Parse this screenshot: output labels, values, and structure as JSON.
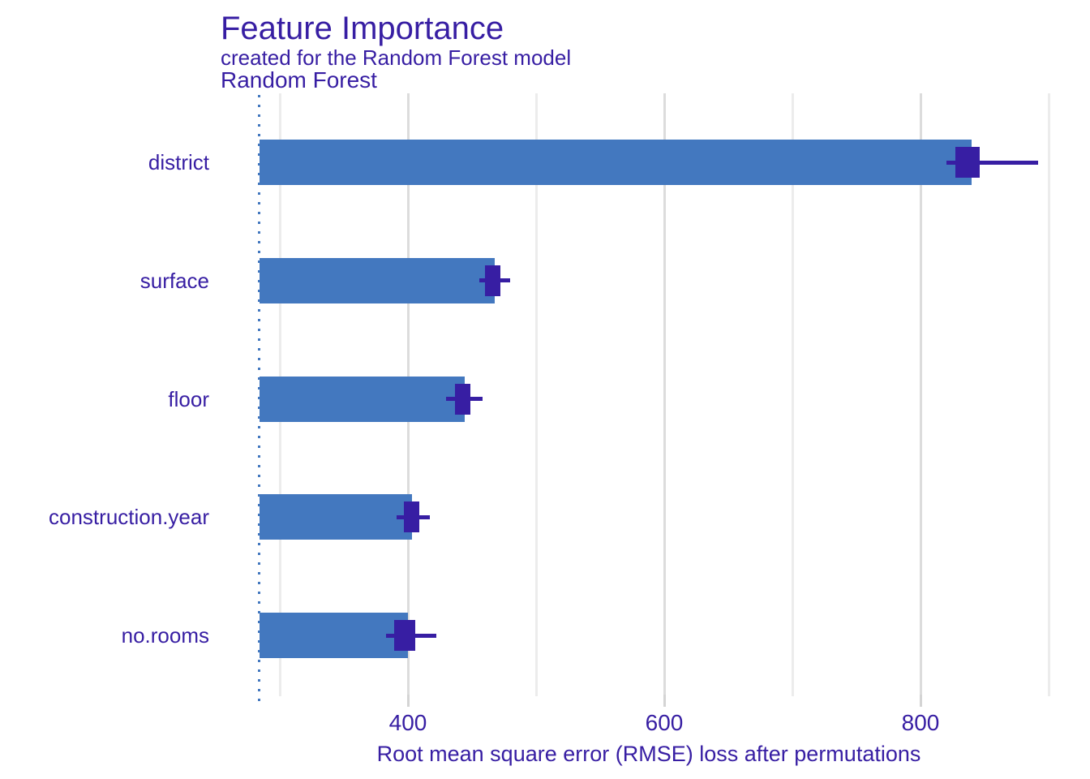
{
  "header": {
    "title": "Feature Importance",
    "subtitle": "created for the Random Forest model",
    "facet_label": "Random Forest"
  },
  "axis": {
    "x_title": "Root mean square error (RMSE) loss after permutations",
    "x_tick_labels": [
      "400",
      "600",
      "800"
    ]
  },
  "colors": {
    "bar_fill": "#4378bf",
    "boxplot_fill": "#371ea3",
    "text": "#371ea3",
    "gridline_major": "#dcdcdc",
    "gridline_minor": "#ececec",
    "tick_mark": "#d4d4d4",
    "baseline_dotted": "#4378bf",
    "background": "#ffffff"
  },
  "chart_data": {
    "type": "bar",
    "orientation": "horizontal",
    "title": "Feature Importance",
    "subtitle": "created for the Random Forest model",
    "facet": "Random Forest",
    "xlabel": "Root mean square error (RMSE) loss after permutations",
    "ylabel": "",
    "x_major_ticks": [
      400,
      600,
      800
    ],
    "x_minor_gridlines": [
      300,
      500,
      700,
      900
    ],
    "xlim": [
      249,
      932
    ],
    "grid": "vertical-only",
    "legend": "none",
    "baseline_full_model_rmse": 284,
    "categories": [
      "district",
      "surface",
      "floor",
      "construction.year",
      "no.rooms"
    ],
    "values": [
      840,
      468,
      444,
      403,
      400
    ],
    "series": [
      {
        "name": "RMSE loss after permutations",
        "rows": [
          {
            "feature": "district",
            "dropout_loss": 840,
            "box_low": 827,
            "box_high": 846,
            "whisker_low": 820,
            "whisker_high": 892
          },
          {
            "feature": "surface",
            "dropout_loss": 468,
            "box_low": 460,
            "box_high": 472,
            "whisker_low": 456,
            "whisker_high": 480
          },
          {
            "feature": "floor",
            "dropout_loss": 444,
            "box_low": 437,
            "box_high": 449,
            "whisker_low": 430,
            "whisker_high": 458
          },
          {
            "feature": "construction.year",
            "dropout_loss": 403,
            "box_low": 397,
            "box_high": 409,
            "whisker_low": 391,
            "whisker_high": 417
          },
          {
            "feature": "no.rooms",
            "dropout_loss": 400,
            "box_low": 389,
            "box_high": 406,
            "whisker_low": 383,
            "whisker_high": 422
          }
        ]
      }
    ]
  }
}
